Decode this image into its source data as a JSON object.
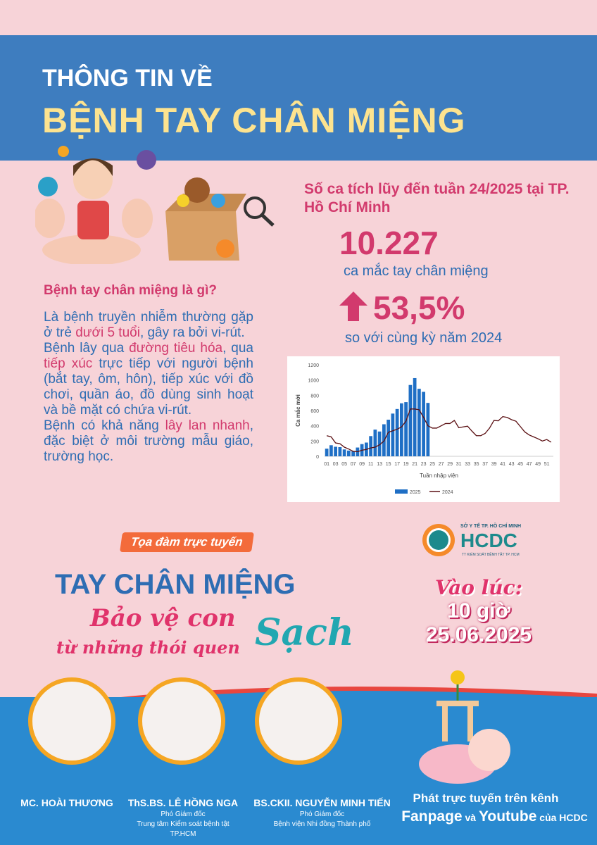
{
  "header": {
    "line1": "THÔNG TIN VỀ",
    "line2": "BỆNH TAY CHÂN MIỆNG"
  },
  "stats": {
    "title": "Số ca tích lũy đến tuần 24/2025 tại TP. Hồ Chí Minh",
    "cases": "10.227",
    "cases_label": "ca mắc tay chân miệng",
    "increase": "53,5%",
    "increase_label": "so với cùng kỳ năm 2024",
    "arrow_icon": "arrow-up-icon"
  },
  "info": {
    "question": "Bệnh tay chân miệng là gì?",
    "paragraphs": [
      [
        {
          "t": "Là bệnh truyền nhiễm thường gặp ở trẻ "
        },
        {
          "t": "dưới 5 tuổi",
          "hl": true
        },
        {
          "t": ", gây ra bởi vi-rút."
        }
      ],
      [
        {
          "t": "Bệnh lây qua "
        },
        {
          "t": "đường tiêu hóa",
          "hl": true
        },
        {
          "t": ", qua "
        },
        {
          "t": "tiếp xúc",
          "hl": true
        },
        {
          "t": " trực tiếp với người bệnh (bắt tay, ôm, hôn), tiếp xúc với đồ chơi, quần áo, đồ dùng sinh hoạt và bề mặt có chứa vi-rút."
        }
      ],
      [
        {
          "t": "Bệnh có khả năng "
        },
        {
          "t": "lây lan nhanh",
          "hl": true
        },
        {
          "t": ", đặc biệt ở môi trường mẫu giáo, trường học."
        }
      ]
    ]
  },
  "chart_data": {
    "type": "bar+line",
    "xlabel": "Tuần nhập viện",
    "ylabel": "Ca mắc mới",
    "ylim": [
      0,
      1200
    ],
    "yticks": [
      0,
      200,
      400,
      600,
      800,
      1000,
      1200
    ],
    "xticks": [
      "01",
      "03",
      "05",
      "07",
      "09",
      "11",
      "13",
      "15",
      "17",
      "19",
      "21",
      "23",
      "25",
      "27",
      "29",
      "31",
      "33",
      "35",
      "37",
      "39",
      "41",
      "43",
      "45",
      "47",
      "49",
      "51"
    ],
    "legend_position": "bottom",
    "grid": false,
    "series": [
      {
        "name": "2025",
        "type": "bar",
        "color": "#1f6fc5",
        "x_start_week": 1,
        "values": [
          100,
          145,
          125,
          120,
          90,
          75,
          65,
          115,
          160,
          180,
          265,
          350,
          325,
          420,
          480,
          560,
          620,
          695,
          710,
          935,
          1025,
          885,
          845,
          700
        ]
      },
      {
        "name": "2024",
        "type": "line",
        "color": "#5a0f12",
        "x_start_week": 1,
        "values": [
          270,
          255,
          175,
          165,
          120,
          95,
          65,
          60,
          80,
          90,
          110,
          120,
          150,
          200,
          315,
          335,
          355,
          385,
          460,
          620,
          620,
          610,
          510,
          400,
          370,
          370,
          400,
          430,
          430,
          470,
          375,
          385,
          395,
          330,
          270,
          270,
          300,
          370,
          470,
          465,
          520,
          510,
          480,
          460,
          390,
          320,
          280,
          255,
          230,
          200,
          220,
          185
        ]
      }
    ]
  },
  "event": {
    "badge": "Tọa đàm trực tuyến",
    "title": "TAY CHÂN MIỆNG",
    "slogan1": "Bảo vệ con",
    "slogan2": "từ những thói quen",
    "slogan3": "Sạch",
    "time_label": "Vào lúc:",
    "time": "10 giờ",
    "date": "25.06.2025"
  },
  "logo": {
    "org": "SỞ Y TẾ TP. HỒ CHÍ MINH",
    "name": "HCDC",
    "sub": "TT KIỂM SOÁT BỆNH TẬT TP. HCM"
  },
  "speakers": [
    {
      "name": "MC. HOÀI THƯƠNG",
      "role1": "",
      "role2": ""
    },
    {
      "name": "ThS.BS. LÊ HỒNG NGA",
      "role1": "Phó Giám đốc",
      "role2": "Trung tâm Kiểm soát bệnh tật TP.HCM"
    },
    {
      "name": "BS.CKII. NGUYỄN MINH TIẾN",
      "role1": "Phó Giám đốc",
      "role2": "Bệnh viện Nhi đồng Thành phố"
    }
  ],
  "stream": {
    "line1": "Phát trực tuyến trên kênh",
    "fanpage": "Fanpage",
    "and": " và ",
    "youtube": "Youtube",
    "of": " của HCDC"
  }
}
